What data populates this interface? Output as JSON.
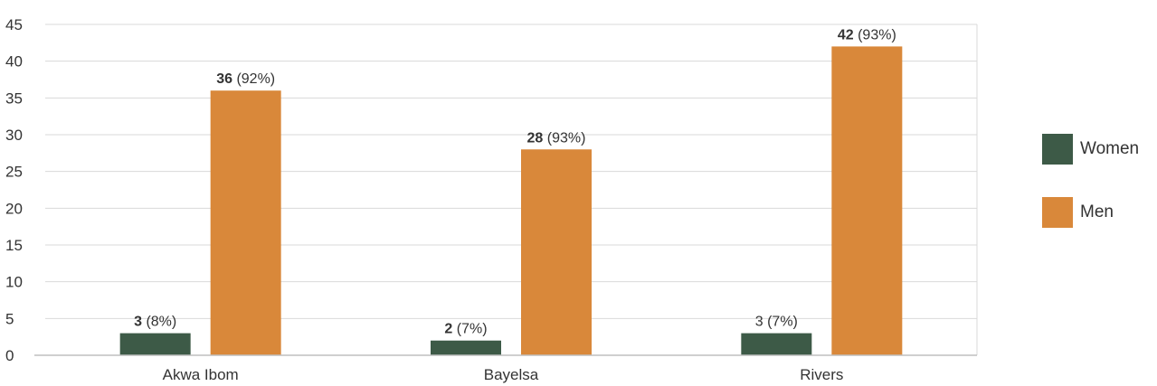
{
  "chart_data": {
    "type": "bar",
    "categories": [
      "Akwa Ibom",
      "Bayelsa",
      "Rivers"
    ],
    "series": [
      {
        "name": "Women",
        "color": "#3d5a47",
        "values": [
          3,
          2,
          3
        ],
        "labels": [
          {
            "value": "3",
            "pct": "(8%)",
            "bold": true
          },
          {
            "value": "2",
            "pct": "(7%)",
            "bold": true
          },
          {
            "value": "3",
            "pct": "(7%)",
            "bold": false
          }
        ]
      },
      {
        "name": "Men",
        "color": "#d9883a",
        "values": [
          36,
          28,
          42
        ],
        "labels": [
          {
            "value": "36",
            "pct": "(92%)",
            "bold": true
          },
          {
            "value": "28",
            "pct": "(93%)",
            "bold": true
          },
          {
            "value": "42",
            "pct": "(93%)",
            "bold": true
          }
        ]
      }
    ],
    "yticks": [
      0,
      5,
      10,
      15,
      20,
      25,
      30,
      35,
      40,
      45
    ],
    "ylim": [
      0,
      45
    ],
    "grid": true,
    "legend_position": "right"
  }
}
